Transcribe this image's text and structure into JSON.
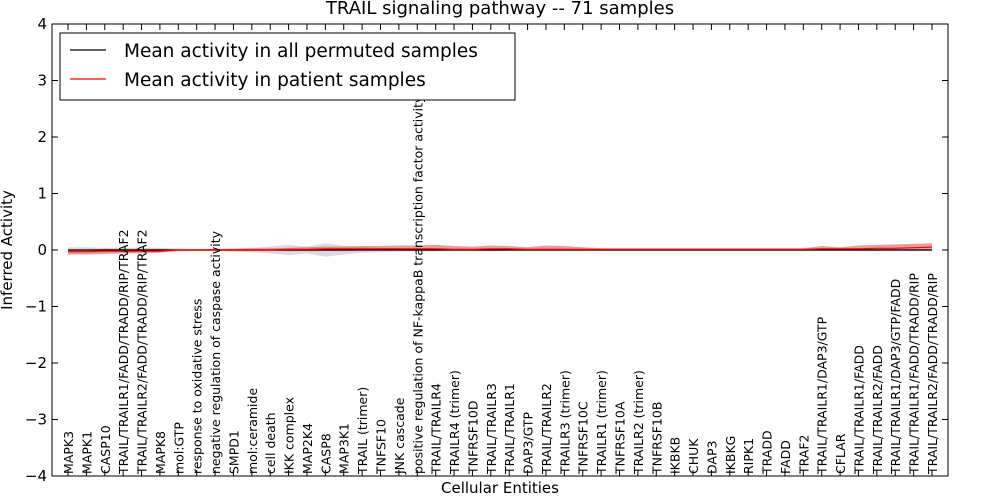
{
  "chart_data": {
    "type": "line",
    "title": "TRAIL signaling pathway -- 71 samples",
    "xlabel": "Cellular Entities",
    "ylabel": "Inferred Activity",
    "ylim": [
      -4,
      4
    ],
    "yticks": [
      -4,
      -3,
      -2,
      -1,
      0,
      1,
      2,
      3,
      4
    ],
    "ytick_labels": [
      "−4",
      "−3",
      "−2",
      "−1",
      "0",
      "1",
      "2",
      "3",
      "4"
    ],
    "legend_position": "top-left",
    "categories": [
      "MAPK3",
      "MAPK1",
      "CASP10",
      "TRAIL/TRAILR1/FADD/TRADD/RIP/TRAF2",
      "TRAIL/TRAILR2/FADD/TRADD/RIP/TRAF2",
      "MAPK8",
      "mol:GTP",
      "response to oxidative stress",
      "negative regulation of caspase activity",
      "SMPD1",
      "mol:ceramide",
      "cell death",
      "IKK complex",
      "MAP2K4",
      "CASP8",
      "MAP3K1",
      "TRAIL (trimer)",
      "TNFSF10",
      "JNK cascade",
      "positive regulation of NF-kappaB transcription factor activity",
      "TRAIL/TRAILR4",
      "TRAILR4 (trimer)",
      "TNFRSF10D",
      "TRAIL/TRAILR3",
      "TRAIL/TRAILR1",
      "DAP3/GTP",
      "TRAIL/TRAILR2",
      "TRAILR3 (trimer)",
      "TNFRSF10C",
      "TRAILR1 (trimer)",
      "TNFRSF10A",
      "TRAILR2 (trimer)",
      "TNFRSF10B",
      "IKBKB",
      "CHUK",
      "DAP3",
      "IKBKG",
      "RIPK1",
      "TRADD",
      "FADD",
      "TRAF2",
      "TRAIL/TRAILR1/DAP3/GTP",
      "CFLAR",
      "TRAIL/TRAILR1/FADD",
      "TRAIL/TRAILR2/FADD",
      "TRAIL/TRAILR1/DAP3/GTP/FADD",
      "TRAIL/TRAILR1/FADD/TRADD/RIP",
      "TRAIL/TRAILR2/FADD/TRADD/RIP"
    ],
    "series": [
      {
        "name": "Mean activity in all permuted samples",
        "color": "#000000",
        "values": [
          0.0,
          0.0,
          0.0,
          0.0,
          0.0,
          0.0,
          0.0,
          0.0,
          0.0,
          0.0,
          0.0,
          0.0,
          0.0,
          0.0,
          0.0,
          0.0,
          0.0,
          0.0,
          0.0,
          0.0,
          0.0,
          0.0,
          0.0,
          0.0,
          0.0,
          0.0,
          0.0,
          0.0,
          0.0,
          0.0,
          0.0,
          0.0,
          0.0,
          0.0,
          0.0,
          0.0,
          0.0,
          0.0,
          0.0,
          0.0,
          0.0,
          0.0,
          0.0,
          0.0,
          0.0,
          0.0,
          0.0,
          0.0
        ],
        "band_lower": [
          -0.05,
          -0.05,
          -0.04,
          -0.04,
          -0.04,
          -0.04,
          -0.03,
          -0.02,
          -0.02,
          -0.03,
          -0.04,
          -0.06,
          -0.09,
          -0.06,
          -0.12,
          -0.08,
          -0.05,
          -0.04,
          -0.03,
          -0.02,
          -0.02,
          -0.02,
          -0.02,
          -0.02,
          -0.02,
          -0.02,
          -0.02,
          -0.02,
          -0.02,
          -0.02,
          -0.02,
          -0.02,
          -0.02,
          -0.02,
          -0.02,
          -0.02,
          -0.02,
          -0.02,
          -0.02,
          -0.02,
          -0.02,
          -0.02,
          -0.02,
          -0.02,
          -0.02,
          -0.02,
          -0.02,
          -0.02
        ],
        "band_upper": [
          0.05,
          0.05,
          0.04,
          0.04,
          0.04,
          0.04,
          0.03,
          0.02,
          0.02,
          0.03,
          0.04,
          0.06,
          0.09,
          0.06,
          0.12,
          0.08,
          0.05,
          0.04,
          0.03,
          0.02,
          0.02,
          0.02,
          0.02,
          0.02,
          0.02,
          0.02,
          0.02,
          0.02,
          0.02,
          0.02,
          0.02,
          0.02,
          0.02,
          0.02,
          0.02,
          0.02,
          0.02,
          0.02,
          0.02,
          0.02,
          0.02,
          0.02,
          0.02,
          0.02,
          0.02,
          0.02,
          0.02,
          0.02
        ]
      },
      {
        "name": "Mean activity in patient samples",
        "color": "#ff0000",
        "values": [
          -0.03,
          -0.03,
          -0.02,
          -0.02,
          -0.02,
          -0.02,
          0.0,
          0.0,
          0.0,
          0.0,
          0.0,
          0.0,
          0.01,
          0.01,
          0.02,
          0.02,
          0.02,
          0.02,
          0.02,
          0.02,
          0.02,
          0.01,
          0.01,
          0.02,
          0.02,
          0.01,
          0.01,
          0.01,
          0.01,
          0.01,
          0.01,
          0.01,
          0.01,
          0.01,
          0.01,
          0.01,
          0.01,
          0.01,
          0.01,
          0.01,
          0.01,
          0.02,
          0.02,
          0.02,
          0.03,
          0.03,
          0.04,
          0.05
        ],
        "band_lower": [
          -0.08,
          -0.08,
          -0.07,
          -0.06,
          -0.06,
          -0.05,
          -0.01,
          -0.01,
          -0.01,
          -0.02,
          -0.02,
          -0.02,
          -0.02,
          -0.02,
          -0.02,
          -0.02,
          -0.01,
          -0.01,
          -0.01,
          -0.02,
          -0.02,
          -0.01,
          -0.01,
          -0.02,
          -0.01,
          -0.01,
          -0.01,
          -0.01,
          -0.01,
          0.0,
          0.0,
          0.0,
          0.0,
          0.0,
          0.0,
          0.0,
          0.0,
          0.0,
          0.0,
          0.0,
          0.0,
          0.0,
          -0.01,
          -0.01,
          -0.01,
          -0.01,
          0.0,
          0.0
        ],
        "band_upper": [
          0.01,
          0.01,
          0.02,
          0.02,
          0.02,
          0.02,
          0.01,
          0.01,
          0.02,
          0.02,
          0.03,
          0.03,
          0.04,
          0.05,
          0.06,
          0.06,
          0.07,
          0.07,
          0.08,
          0.08,
          0.09,
          0.07,
          0.06,
          0.08,
          0.07,
          0.05,
          0.08,
          0.07,
          0.05,
          0.03,
          0.03,
          0.03,
          0.03,
          0.03,
          0.03,
          0.03,
          0.03,
          0.03,
          0.03,
          0.03,
          0.03,
          0.07,
          0.05,
          0.08,
          0.09,
          0.1,
          0.11,
          0.12
        ]
      }
    ]
  }
}
